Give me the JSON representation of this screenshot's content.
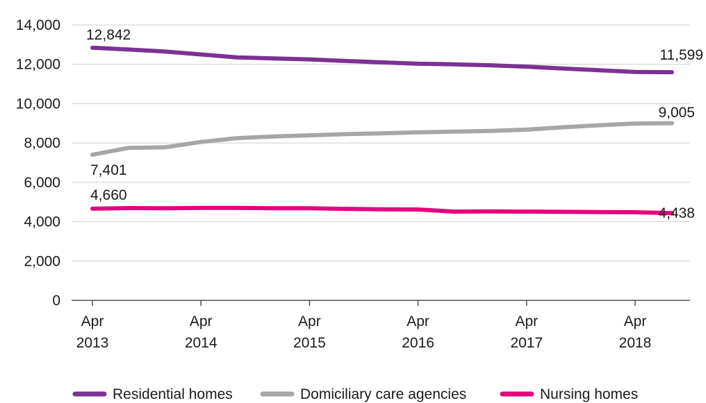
{
  "chart_data": {
    "type": "line",
    "title": "",
    "xlabel": "",
    "ylabel": "",
    "ylim": [
      0,
      14000
    ],
    "yticks": [
      0,
      2000,
      4000,
      6000,
      8000,
      10000,
      12000,
      14000
    ],
    "ytick_labels": [
      "0",
      "2,000",
      "4,000",
      "6,000",
      "8,000",
      "10,000",
      "12,000",
      "14,000"
    ],
    "grid": true,
    "legend_position": "bottom",
    "x_tick_labels": [
      {
        "line1": "Apr",
        "line2": "2013"
      },
      {
        "line1": "Apr",
        "line2": "2014"
      },
      {
        "line1": "Apr",
        "line2": "2015"
      },
      {
        "line1": "Apr",
        "line2": "2016"
      },
      {
        "line1": "Apr",
        "line2": "2017"
      },
      {
        "line1": "Apr",
        "line2": "2018"
      }
    ],
    "x": [
      "Apr 2013",
      "Aug 2013",
      "Dec 2013",
      "Apr 2014",
      "Aug 2014",
      "Dec 2014",
      "Apr 2015",
      "Aug 2015",
      "Dec 2015",
      "Apr 2016",
      "Aug 2016",
      "Dec 2016",
      "Apr 2017",
      "Aug 2017",
      "Dec 2017",
      "Apr 2018",
      "Jul 2018"
    ],
    "series": [
      {
        "name": "Residential homes",
        "color": "#7b3294",
        "values": [
          12842,
          12750,
          12650,
          12500,
          12350,
          12300,
          12250,
          12170,
          12100,
          12030,
          12000,
          11950,
          11880,
          11790,
          11700,
          11610,
          11599
        ],
        "start_label": "12,842",
        "end_label": "11,599"
      },
      {
        "name": "Domiciliary care agencies",
        "color": "#a6a6a6",
        "values": [
          7401,
          7750,
          7780,
          8050,
          8250,
          8330,
          8390,
          8450,
          8490,
          8540,
          8580,
          8610,
          8680,
          8800,
          8900,
          8990,
          9005
        ],
        "start_label": "7,401",
        "end_label": "9,005"
      },
      {
        "name": "Nursing homes",
        "color": "#e6007e",
        "values": [
          4660,
          4690,
          4680,
          4700,
          4700,
          4680,
          4680,
          4650,
          4630,
          4620,
          4510,
          4520,
          4510,
          4500,
          4490,
          4480,
          4438
        ],
        "start_label": "4,660",
        "end_label": "4,438"
      }
    ]
  }
}
